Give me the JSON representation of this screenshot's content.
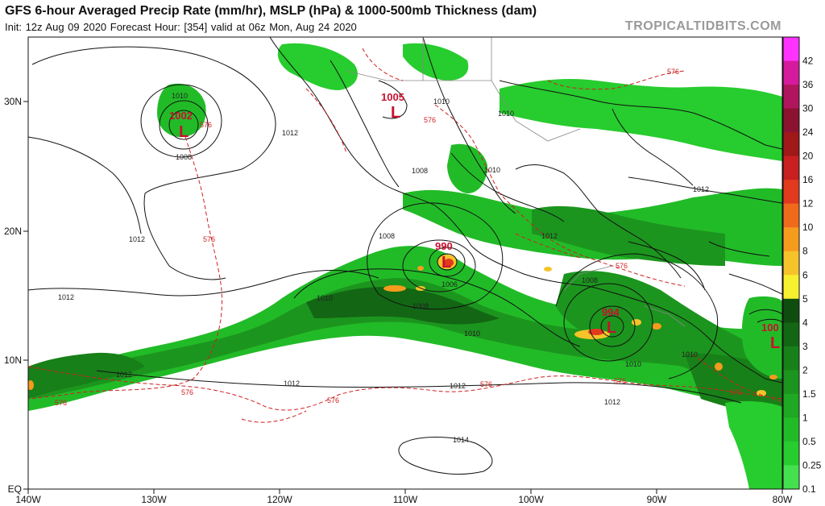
{
  "header": {
    "title": "GFS 6-hour Averaged Precip Rate (mm/hr), MSLP (hPa) & 1000-500mb Thickness (dam)",
    "subtitle": "Init: 12z Aug 09 2020   Forecast Hour: [354]   valid at 06z Mon, Aug 24 2020",
    "brand": "TROPICALTIDBITS.COM"
  },
  "axes": {
    "lon_labels": [
      "140W",
      "130W",
      "120W",
      "110W",
      "100W",
      "90W",
      "80W"
    ],
    "lat_labels": [
      "30N",
      "20N",
      "10N",
      "EQ"
    ]
  },
  "colorbar": {
    "labels": [
      "42",
      "36",
      "30",
      "24",
      "20",
      "16",
      "12",
      "10",
      "8",
      "6",
      "5",
      "4",
      "3",
      "2",
      "1.5",
      "1",
      "0.5",
      "0.25",
      "0.1"
    ],
    "colors": [
      "#ff33ff",
      "#d61a9e",
      "#b0165e",
      "#8b1230",
      "#a01818",
      "#c82020",
      "#e23a1e",
      "#f06a1c",
      "#f59b1e",
      "#f7c32a",
      "#f7f02e",
      "#0f4d0f",
      "#136614",
      "#188018",
      "#1c951e",
      "#1fa823",
      "#22bb28",
      "#27cc2e",
      "#44e050"
    ]
  },
  "pressure_labels": [
    "1010",
    "1012",
    "1008",
    "1012",
    "1012",
    "1010",
    "1010",
    "1008",
    "1008",
    "1006",
    "1010",
    "1008",
    "1012",
    "1010",
    "1010",
    "1012",
    "1014",
    "1012",
    "1008",
    "1012",
    "1010",
    "1010",
    "1012",
    "1012"
  ],
  "thickness_labels": [
    "576",
    "576",
    "576",
    "576",
    "576",
    "576",
    "576",
    "576",
    "576",
    "576",
    "576"
  ],
  "lows": [
    {
      "value": "1002",
      "symbol": "L"
    },
    {
      "value": "1005",
      "symbol": "L"
    },
    {
      "value": "990",
      "symbol": "L"
    },
    {
      "value": "994",
      "symbol": "L"
    },
    {
      "value": "100",
      "symbol": "L"
    }
  ]
}
